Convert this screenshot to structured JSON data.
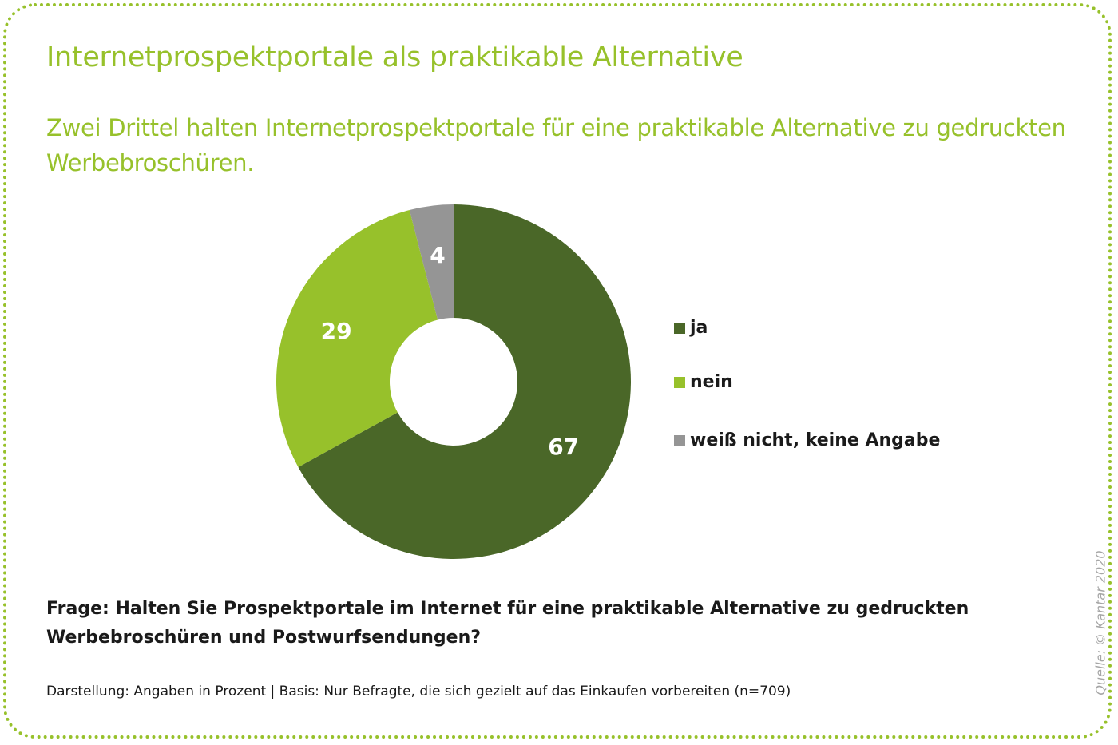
{
  "title": "Internetprospektportale als praktikable Alternative",
  "subtitle": "Zwei Drittel halten Internetprospektportale für eine praktikable Alternative zu gedruckten Werbebroschüren.",
  "question": "Frage: Halten Sie Prospektportale im Internet für eine praktikable Alternative zu gedruckten Werbebroschüren und Postwurfsendungen?",
  "footnote": "Darstellung: Angaben in Prozent  | Basis: Nur Befragte, die sich gezielt auf das Einkaufen vorbereiten (n=709)",
  "source": "Quelle: © Kantar 2020",
  "colors": {
    "accent": "#97c12b",
    "frame": "#97c12b"
  },
  "chart_data": {
    "type": "pie",
    "style": "donut",
    "unit": "Prozent",
    "categories": [
      "ja",
      "nein",
      "weiß nicht, keine Angabe"
    ],
    "values": [
      67,
      29,
      4
    ],
    "labels": [
      "67",
      "29",
      "4"
    ],
    "colors": [
      "#4a6728",
      "#97c12b",
      "#959595"
    ],
    "legend_position": "right"
  }
}
